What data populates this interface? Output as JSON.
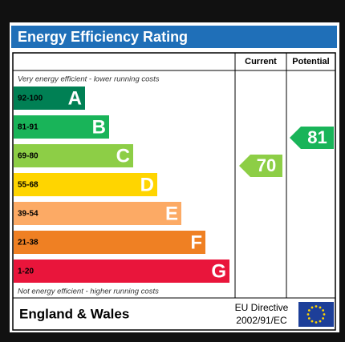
{
  "title": "Energy Efficiency Rating",
  "headers": [
    "Current",
    "Potential"
  ],
  "top_note": "Very energy efficient - lower running costs",
  "bottom_note": "Not energy efficient - higher running costs",
  "bands": [
    {
      "range": "92-100",
      "letter": "A",
      "color": "#008054"
    },
    {
      "range": "81-91",
      "letter": "B",
      "color": "#19b459"
    },
    {
      "range": "69-80",
      "letter": "C",
      "color": "#8dce46"
    },
    {
      "range": "55-68",
      "letter": "D",
      "color": "#ffd500"
    },
    {
      "range": "39-54",
      "letter": "E",
      "color": "#fcaa65"
    },
    {
      "range": "21-38",
      "letter": "F",
      "color": "#ef8023"
    },
    {
      "range": "1-20",
      "letter": "G",
      "color": "#e9153b"
    }
  ],
  "current": 70,
  "potential": 81,
  "footer": {
    "region": "England & Wales",
    "directive": [
      "EU Directive",
      "2002/91/EC"
    ]
  }
}
